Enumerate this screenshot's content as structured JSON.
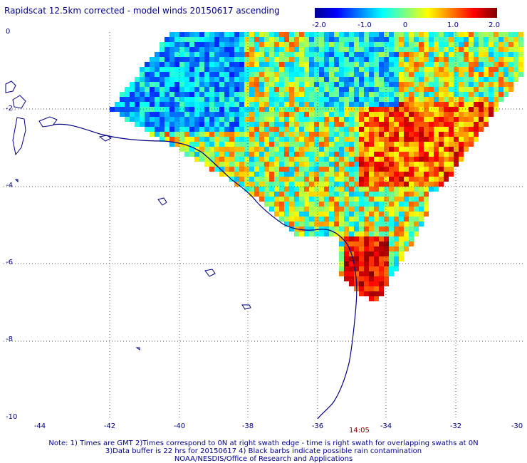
{
  "title": "Rapidscat 12.5km corrected - model winds 20150617 ascending",
  "colorbar": {
    "ticks": [
      "-2.0",
      "-1.0",
      "0",
      "1.0",
      "2.0"
    ],
    "min": -2.0,
    "max": 2.0
  },
  "map": {
    "lat_labels": [
      "0",
      "-2",
      "-4",
      "-6",
      "-8",
      "-10"
    ],
    "lon_labels": [
      "-44",
      "-42",
      "-40",
      "-38",
      "-36",
      "-34",
      "-32",
      "-30"
    ],
    "lat_range": [
      -10,
      0
    ],
    "lon_range": [
      -44.5,
      -30
    ],
    "swath_time": "14:05",
    "coastline_color": "#000080",
    "grid": true
  },
  "notes": [
    "Note: 1) Times are GMT 2)Times correspond to 0N at right swath edge - time is right swath for overlapping swaths at 0N",
    "3)Data buffer is 22 hrs for 20150617 4) Black barbs indicate possible rain contamination",
    "NOAA/NESDIS/Office of Research and Applications"
  ]
}
